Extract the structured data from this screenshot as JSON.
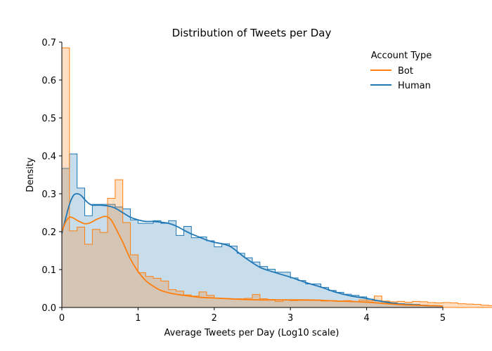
{
  "chart_data": {
    "type": "area",
    "title": "Distribution of Tweets per Day",
    "xlabel": "Average Tweets per Day (Log10 scale)",
    "ylabel": "Density",
    "xlim": [
      0,
      5
    ],
    "ylim": [
      0,
      0.7
    ],
    "x_ticks": [
      "0",
      "1",
      "2",
      "3",
      "4",
      "5"
    ],
    "y_ticks": [
      "0.0",
      "0.1",
      "0.2",
      "0.3",
      "0.4",
      "0.5",
      "0.6",
      "0.7"
    ],
    "grid": false,
    "legend": {
      "title": "Account Type",
      "placement": "top-right"
    },
    "bin_width": 0.1,
    "series": [
      {
        "name": "Human",
        "color": "#1f77b4",
        "histogram": [
          0.367,
          0.405,
          0.315,
          0.242,
          0.272,
          0.272,
          0.272,
          0.265,
          0.26,
          0.231,
          0.222,
          0.222,
          0.229,
          0.222,
          0.229,
          0.19,
          0.214,
          0.184,
          0.186,
          0.176,
          0.16,
          0.168,
          0.162,
          0.143,
          0.131,
          0.12,
          0.108,
          0.101,
          0.093,
          0.093,
          0.078,
          0.071,
          0.062,
          0.062,
          0.053,
          0.045,
          0.04,
          0.035,
          0.032,
          0.028,
          0.022,
          0.018,
          0.015,
          0.012,
          0.01,
          0.009,
          0.008,
          0.006,
          0.005,
          0.004
        ],
        "kde": {
          "x": [
            0,
            0.05,
            0.1,
            0.15,
            0.2,
            0.25,
            0.3,
            0.35,
            0.4,
            0.5,
            0.6,
            0.7,
            0.8,
            0.9,
            1.0,
            1.1,
            1.2,
            1.3,
            1.4,
            1.5,
            1.6,
            1.7,
            1.8,
            1.9,
            2.0,
            2.2,
            2.4,
            2.6,
            2.8,
            3.0,
            3.2,
            3.4,
            3.6,
            3.8,
            4.0,
            4.2,
            4.4,
            4.6,
            4.8,
            5.0
          ],
          "y": [
            0.195,
            0.235,
            0.272,
            0.295,
            0.3,
            0.296,
            0.285,
            0.275,
            0.27,
            0.27,
            0.268,
            0.262,
            0.25,
            0.238,
            0.231,
            0.227,
            0.227,
            0.225,
            0.222,
            0.215,
            0.204,
            0.194,
            0.186,
            0.178,
            0.172,
            0.162,
            0.132,
            0.106,
            0.092,
            0.08,
            0.066,
            0.054,
            0.04,
            0.03,
            0.024,
            0.016,
            0.01,
            0.007,
            0.005,
            0.004
          ]
        }
      },
      {
        "name": "Bot",
        "color": "#ff7f0e",
        "histogram": [
          0.685,
          0.202,
          0.212,
          0.167,
          0.206,
          0.198,
          0.288,
          0.337,
          0.224,
          0.139,
          0.092,
          0.082,
          0.077,
          0.07,
          0.047,
          0.043,
          0.033,
          0.03,
          0.041,
          0.032,
          0.025,
          0.024,
          0.022,
          0.023,
          0.024,
          0.034,
          0.023,
          0.021,
          0.016,
          0.02,
          0.018,
          0.019,
          0.019,
          0.02,
          0.017,
          0.018,
          0.016,
          0.018,
          0.015,
          0.02,
          0.018,
          0.03,
          0.017,
          0.015,
          0.016,
          0.014,
          0.016,
          0.015,
          0.013,
          0.012,
          0.013,
          0.012,
          0.01,
          0.009,
          0.008,
          0.006,
          0.005,
          0.005,
          0.005,
          0.004
        ],
        "kde": {
          "x": [
            0,
            0.05,
            0.1,
            0.15,
            0.2,
            0.25,
            0.3,
            0.35,
            0.4,
            0.45,
            0.5,
            0.55,
            0.6,
            0.65,
            0.7,
            0.8,
            0.9,
            1.0,
            1.1,
            1.2,
            1.3,
            1.4,
            1.5,
            1.6,
            1.8,
            2.0,
            2.2,
            2.4,
            2.6,
            2.8,
            3.0,
            3.2,
            3.4,
            3.6,
            3.8,
            4.0,
            4.2,
            4.4,
            4.6,
            4.8,
            5.0
          ],
          "y": [
            0.2,
            0.225,
            0.238,
            0.236,
            0.23,
            0.225,
            0.221,
            0.222,
            0.226,
            0.232,
            0.236,
            0.24,
            0.239,
            0.23,
            0.212,
            0.172,
            0.128,
            0.095,
            0.071,
            0.056,
            0.045,
            0.039,
            0.035,
            0.032,
            0.027,
            0.025,
            0.023,
            0.021,
            0.02,
            0.02,
            0.02,
            0.02,
            0.019,
            0.017,
            0.016,
            0.014,
            0.011,
            0.008,
            0.006,
            0.005,
            0.004
          ]
        }
      }
    ]
  }
}
